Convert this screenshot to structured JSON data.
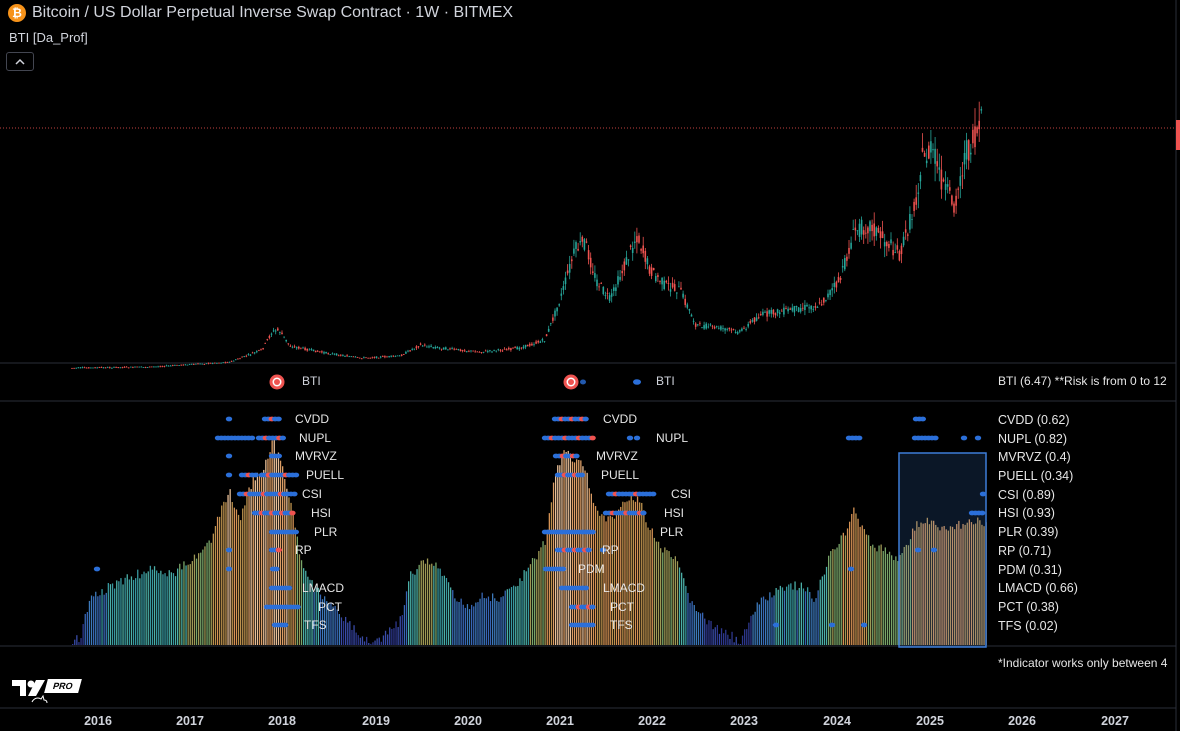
{
  "header": {
    "symbol_icon": "bitcoin-icon",
    "title": "Bitcoin / US Dollar Perpetual Inverse Swap Contract · 1W · BITMEX",
    "indicator_name": "BTI [Da_Prof]",
    "collapse_label": "^"
  },
  "legend": {
    "bti_label_1": "BTI",
    "bti_label_2": "BTI",
    "info_text": "BTI (6.47) **Risk is from 0 to 12",
    "note_text": "*Indicator works only between 4"
  },
  "left_cycle_labels": [
    "CVDD",
    "NUPL",
    "MVRVZ",
    "PUELL",
    "CSI",
    "HSI",
    "PLR",
    "RP",
    "LMACD",
    "PCT",
    "TFS"
  ],
  "mid_cycle_labels": [
    "CVDD",
    "NUPL",
    "MVRVZ",
    "PUELL",
    "CSI",
    "HSI",
    "PLR",
    "RP",
    "PDM",
    "LMACD",
    "PCT",
    "TFS"
  ],
  "metric_values": [
    "CVDD (0.62)",
    "NUPL (0.82)",
    "MVRVZ (0.4)",
    "PUELL (0.34)",
    "CSI (0.89)",
    "HSI (0.93)",
    "PLR (0.39)",
    "RP (0.71)",
    "PDM (0.31)",
    "LMACD (0.66)",
    "PCT (0.38)",
    "TFS (0.02)"
  ],
  "time_axis": [
    "2016",
    "2017",
    "2018",
    "2019",
    "2020",
    "2021",
    "2022",
    "2023",
    "2024",
    "2025",
    "2026",
    "2027"
  ],
  "branding": {
    "logo": "tradingview-logo-icon",
    "badge": "PRO"
  },
  "colors": {
    "background": "#000000",
    "up_candle": "#26a69a",
    "down_candle": "#ef5350",
    "price_line": "#ef5350",
    "selection_box": "#3d7dd8",
    "marker_red": "#ef5350",
    "dot_blue": "#2b6fd9"
  }
}
